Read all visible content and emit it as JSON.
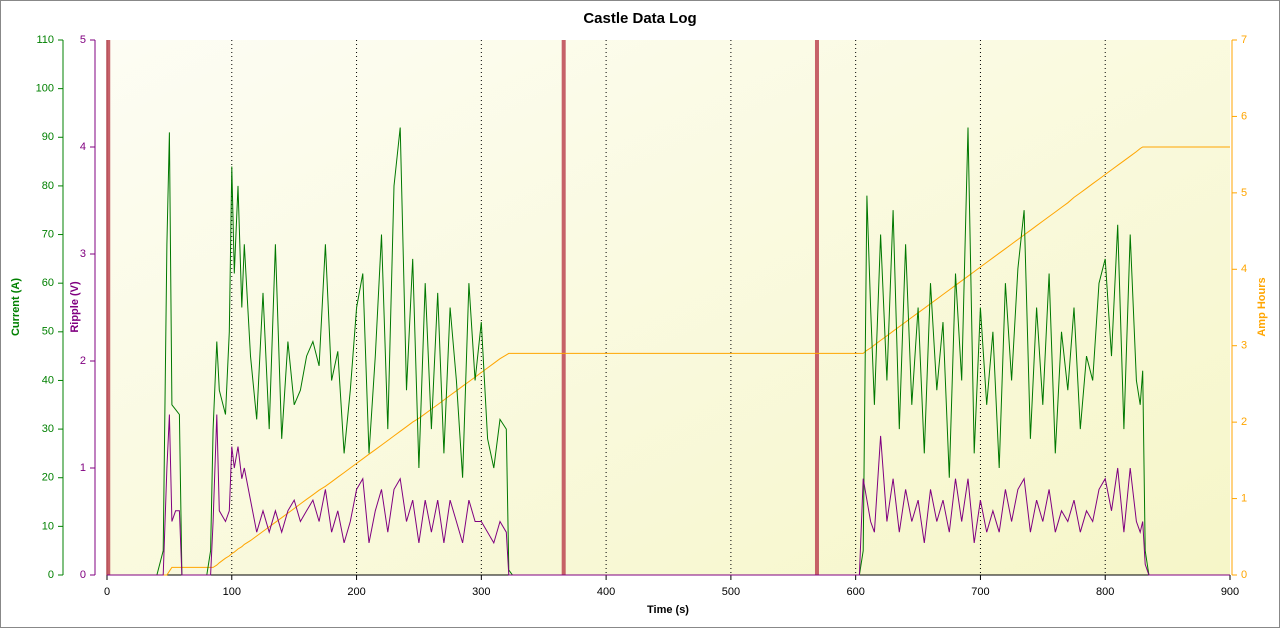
{
  "chart_data": {
    "type": "line",
    "title": "Castle Data Log",
    "x_label": "Time (s)",
    "y_label": "Current (A)",
    "y2_label": "Ripple (V)",
    "y3_label": "Amp Hours",
    "xlim": [
      0,
      900
    ],
    "xticks": [
      0,
      100,
      200,
      300,
      400,
      500,
      600,
      700,
      800,
      900
    ],
    "ylim": [
      0,
      110
    ],
    "yticks": [
      0,
      10,
      20,
      30,
      40,
      50,
      60,
      70,
      80,
      90,
      100,
      110
    ],
    "y_color": "#008000",
    "y2lim": [
      0,
      5
    ],
    "y2ticks": [
      0,
      1,
      2,
      3,
      4,
      5
    ],
    "y2_color": "#800080",
    "y3lim": [
      0,
      7
    ],
    "y3ticks": [
      0,
      1,
      2,
      3,
      4,
      5,
      6,
      7
    ],
    "y3_color": "#ffa500",
    "grid": true,
    "marker_color": "#c0505a",
    "markers": [
      1,
      366,
      569
    ],
    "x": [
      0,
      40,
      45,
      48,
      50,
      52,
      55,
      58,
      60,
      65,
      70,
      75,
      80,
      83,
      85,
      88,
      90,
      95,
      98,
      100,
      102,
      105,
      108,
      110,
      115,
      120,
      125,
      130,
      135,
      140,
      145,
      150,
      155,
      160,
      165,
      170,
      175,
      180,
      185,
      190,
      195,
      200,
      205,
      210,
      215,
      220,
      225,
      230,
      235,
      240,
      245,
      250,
      255,
      260,
      265,
      270,
      275,
      280,
      285,
      290,
      295,
      300,
      305,
      310,
      315,
      320,
      322,
      325,
      400,
      600,
      603,
      606,
      609,
      612,
      615,
      620,
      625,
      630,
      635,
      640,
      645,
      650,
      655,
      660,
      665,
      670,
      675,
      680,
      685,
      690,
      695,
      700,
      705,
      710,
      715,
      720,
      725,
      730,
      735,
      740,
      745,
      750,
      755,
      760,
      765,
      770,
      775,
      780,
      785,
      790,
      795,
      800,
      805,
      810,
      815,
      820,
      825,
      828,
      830,
      832,
      835,
      900
    ],
    "series": [
      {
        "name": "Current (A)",
        "color": "#007800",
        "axis": "y",
        "values": [
          0,
          0,
          5,
          68,
          91,
          35,
          34,
          33,
          0,
          0,
          0,
          0,
          0,
          5,
          30,
          48,
          38,
          33,
          50,
          84,
          62,
          80,
          55,
          68,
          45,
          32,
          58,
          30,
          68,
          28,
          48,
          35,
          38,
          45,
          48,
          43,
          68,
          40,
          46,
          25,
          38,
          55,
          62,
          25,
          45,
          70,
          30,
          80,
          92,
          38,
          65,
          22,
          60,
          30,
          58,
          25,
          55,
          40,
          20,
          60,
          40,
          52,
          28,
          22,
          32,
          30,
          1,
          0,
          0,
          0,
          0,
          5,
          78,
          55,
          35,
          70,
          40,
          75,
          30,
          68,
          35,
          55,
          25,
          60,
          38,
          52,
          20,
          62,
          40,
          92,
          25,
          55,
          35,
          50,
          22,
          60,
          40,
          63,
          75,
          28,
          55,
          35,
          62,
          25,
          50,
          38,
          55,
          30,
          45,
          40,
          60,
          65,
          45,
          72,
          30,
          70,
          40,
          35,
          42,
          5,
          0,
          0
        ]
      },
      {
        "name": "Ripple (V)",
        "color": "#800080",
        "axis": "y2",
        "values": [
          0,
          0,
          0,
          1,
          1.5,
          0.5,
          0.6,
          0.6,
          0,
          0,
          0,
          0,
          0,
          0,
          0.5,
          1.5,
          0.6,
          0.5,
          0.6,
          1.2,
          1,
          1.2,
          0.9,
          1,
          0.7,
          0.4,
          0.6,
          0.4,
          0.6,
          0.4,
          0.6,
          0.7,
          0.5,
          0.6,
          0.7,
          0.5,
          0.8,
          0.4,
          0.6,
          0.3,
          0.5,
          0.8,
          0.9,
          0.3,
          0.6,
          0.8,
          0.4,
          0.8,
          0.9,
          0.5,
          0.7,
          0.3,
          0.7,
          0.4,
          0.7,
          0.3,
          0.7,
          0.5,
          0.3,
          0.7,
          0.5,
          0.5,
          0.4,
          0.3,
          0.5,
          0.4,
          0,
          0,
          0,
          0,
          0,
          0.9,
          0.7,
          0.5,
          0.4,
          1.3,
          0.5,
          0.9,
          0.4,
          0.8,
          0.5,
          0.7,
          0.3,
          0.8,
          0.5,
          0.7,
          0.4,
          0.9,
          0.5,
          0.9,
          0.3,
          0.7,
          0.4,
          0.6,
          0.4,
          0.8,
          0.5,
          0.8,
          0.9,
          0.4,
          0.7,
          0.5,
          0.8,
          0.4,
          0.6,
          0.5,
          0.7,
          0.4,
          0.6,
          0.5,
          0.8,
          0.9,
          0.6,
          1,
          0.4,
          1,
          0.5,
          0.4,
          0.5,
          0.1,
          0,
          0
        ]
      },
      {
        "name": "Amp Hours",
        "color": "#ffa500",
        "axis": "y3",
        "values": [
          0,
          0,
          0,
          0,
          0.05,
          0.1,
          0.1,
          0.1,
          0.1,
          0.1,
          0.1,
          0.1,
          0.1,
          0.1,
          0.1,
          0.13,
          0.16,
          0.22,
          0.25,
          0.28,
          0.3,
          0.34,
          0.37,
          0.4,
          0.45,
          0.51,
          0.57,
          0.63,
          0.69,
          0.75,
          0.81,
          0.87,
          0.93,
          0.99,
          1.05,
          1.11,
          1.16,
          1.22,
          1.28,
          1.34,
          1.4,
          1.46,
          1.52,
          1.58,
          1.64,
          1.7,
          1.76,
          1.82,
          1.88,
          1.94,
          2,
          2.05,
          2.11,
          2.17,
          2.23,
          2.29,
          2.35,
          2.41,
          2.47,
          2.53,
          2.59,
          2.65,
          2.71,
          2.77,
          2.83,
          2.88,
          2.9,
          2.9,
          2.9,
          2.9,
          2.9,
          2.9,
          2.94,
          2.97,
          3.01,
          3.07,
          3.13,
          3.19,
          3.25,
          3.31,
          3.37,
          3.43,
          3.49,
          3.55,
          3.61,
          3.67,
          3.73,
          3.79,
          3.85,
          3.91,
          3.97,
          4.03,
          4.09,
          4.15,
          4.21,
          4.27,
          4.33,
          4.39,
          4.45,
          4.51,
          4.57,
          4.63,
          4.69,
          4.75,
          4.81,
          4.87,
          4.94,
          5,
          5.06,
          5.12,
          5.18,
          5.24,
          5.3,
          5.36,
          5.42,
          5.48,
          5.54,
          5.58,
          5.6,
          5.6,
          5.6,
          5.6
        ]
      }
    ]
  }
}
